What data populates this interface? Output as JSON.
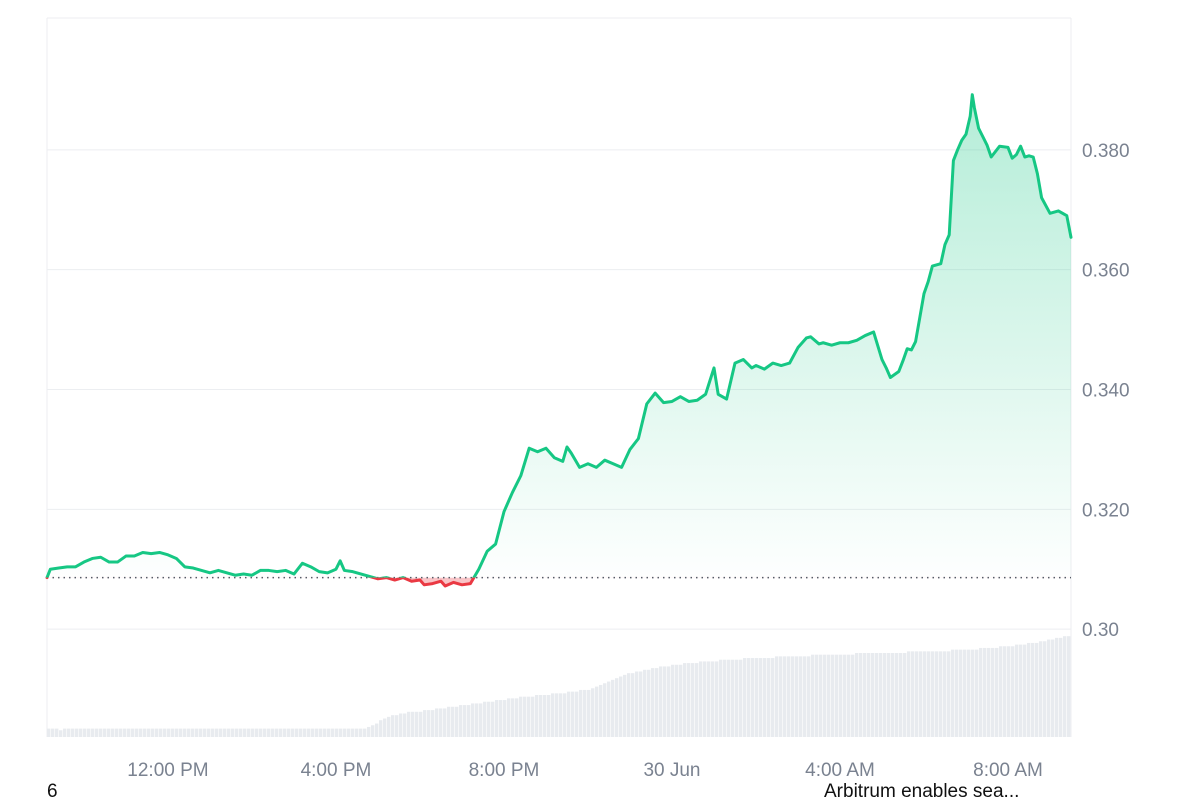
{
  "chart_data": {
    "type": "area",
    "title": "",
    "xlabel": "",
    "ylabel": "",
    "ylim": [
      0.282,
      0.402
    ],
    "baseline": 0.3086,
    "grid": true,
    "y_ticks": [
      {
        "value": 0.38,
        "label": "0.380"
      },
      {
        "value": 0.36,
        "label": "0.360"
      },
      {
        "value": 0.34,
        "label": "0.340"
      },
      {
        "value": 0.32,
        "label": "0.320"
      },
      {
        "value": 0.3,
        "label": "0.30"
      }
    ],
    "x_ticks": [
      {
        "t": 2.0,
        "label": "12:00 PM"
      },
      {
        "t": 6.0,
        "label": "4:00 PM"
      },
      {
        "t": 10.0,
        "label": "8:00 PM"
      },
      {
        "t": 14.0,
        "label": "30 Jun"
      },
      {
        "t": 18.0,
        "label": "4:00 AM"
      },
      {
        "t": 22.0,
        "label": "8:00 AM"
      }
    ],
    "xlim": [
      -0.88,
      23.5
    ],
    "colors": {
      "up": "#16c784",
      "down": "#ea3943",
      "volume": "#e8ebef"
    },
    "series": [
      {
        "points": [
          [
            -0.88,
            0.3086
          ],
          [
            -0.8,
            0.31
          ],
          [
            -0.6,
            0.3102
          ],
          [
            -0.4,
            0.3104
          ],
          [
            -0.2,
            0.3104
          ],
          [
            0.0,
            0.3112
          ],
          [
            0.2,
            0.3118
          ],
          [
            0.4,
            0.312
          ],
          [
            0.6,
            0.3112
          ],
          [
            0.8,
            0.3112
          ],
          [
            1.0,
            0.3122
          ],
          [
            1.2,
            0.3122
          ],
          [
            1.4,
            0.3128
          ],
          [
            1.6,
            0.3126
          ],
          [
            1.8,
            0.3128
          ],
          [
            2.0,
            0.3124
          ],
          [
            2.2,
            0.3118
          ],
          [
            2.4,
            0.3104
          ],
          [
            2.6,
            0.3102
          ],
          [
            2.8,
            0.3098
          ],
          [
            3.0,
            0.3094
          ],
          [
            3.2,
            0.3098
          ],
          [
            3.4,
            0.3094
          ],
          [
            3.6,
            0.309
          ],
          [
            3.8,
            0.3092
          ],
          [
            4.0,
            0.309
          ],
          [
            4.2,
            0.3098
          ],
          [
            4.4,
            0.3098
          ],
          [
            4.6,
            0.3096
          ],
          [
            4.8,
            0.3098
          ],
          [
            5.0,
            0.3092
          ],
          [
            5.2,
            0.311
          ],
          [
            5.4,
            0.3104
          ],
          [
            5.6,
            0.3096
          ],
          [
            5.8,
            0.3094
          ],
          [
            6.0,
            0.31
          ],
          [
            6.1,
            0.3114
          ],
          [
            6.2,
            0.3098
          ],
          [
            6.4,
            0.3096
          ],
          [
            6.6,
            0.3092
          ],
          [
            6.8,
            0.3088
          ],
          [
            7.0,
            0.3084
          ],
          [
            7.2,
            0.3086
          ],
          [
            7.4,
            0.3082
          ],
          [
            7.6,
            0.3086
          ],
          [
            7.8,
            0.308
          ],
          [
            8.0,
            0.3082
          ],
          [
            8.1,
            0.3074
          ],
          [
            8.3,
            0.3076
          ],
          [
            8.5,
            0.308
          ],
          [
            8.6,
            0.3072
          ],
          [
            8.8,
            0.3078
          ],
          [
            9.0,
            0.3074
          ],
          [
            9.2,
            0.3076
          ],
          [
            9.4,
            0.31
          ],
          [
            9.6,
            0.313
          ],
          [
            9.8,
            0.3142
          ],
          [
            10.0,
            0.3196
          ],
          [
            10.2,
            0.3228
          ],
          [
            10.4,
            0.3256
          ],
          [
            10.6,
            0.3302
          ],
          [
            10.8,
            0.3296
          ],
          [
            11.0,
            0.3302
          ],
          [
            11.2,
            0.3286
          ],
          [
            11.4,
            0.328
          ],
          [
            11.5,
            0.3304
          ],
          [
            11.6,
            0.3294
          ],
          [
            11.8,
            0.327
          ],
          [
            12.0,
            0.3276
          ],
          [
            12.2,
            0.327
          ],
          [
            12.4,
            0.3282
          ],
          [
            12.6,
            0.3276
          ],
          [
            12.8,
            0.327
          ],
          [
            13.0,
            0.33
          ],
          [
            13.2,
            0.3318
          ],
          [
            13.4,
            0.3376
          ],
          [
            13.6,
            0.3394
          ],
          [
            13.8,
            0.3378
          ],
          [
            14.0,
            0.338
          ],
          [
            14.2,
            0.3388
          ],
          [
            14.4,
            0.338
          ],
          [
            14.6,
            0.3382
          ],
          [
            14.8,
            0.3392
          ],
          [
            15.0,
            0.3436
          ],
          [
            15.1,
            0.3392
          ],
          [
            15.3,
            0.3384
          ],
          [
            15.5,
            0.3444
          ],
          [
            15.7,
            0.345
          ],
          [
            15.9,
            0.3436
          ],
          [
            16.0,
            0.344
          ],
          [
            16.2,
            0.3434
          ],
          [
            16.4,
            0.3444
          ],
          [
            16.6,
            0.344
          ],
          [
            16.8,
            0.3444
          ],
          [
            17.0,
            0.347
          ],
          [
            17.2,
            0.3486
          ],
          [
            17.3,
            0.3488
          ],
          [
            17.5,
            0.3476
          ],
          [
            17.6,
            0.3478
          ],
          [
            17.8,
            0.3474
          ],
          [
            18.0,
            0.3478
          ],
          [
            18.2,
            0.3478
          ],
          [
            18.4,
            0.3482
          ],
          [
            18.6,
            0.349
          ],
          [
            18.8,
            0.3496
          ],
          [
            19.0,
            0.345
          ],
          [
            19.1,
            0.3436
          ],
          [
            19.2,
            0.342
          ],
          [
            19.4,
            0.343
          ],
          [
            19.5,
            0.3448
          ],
          [
            19.6,
            0.3468
          ],
          [
            19.7,
            0.3466
          ],
          [
            19.8,
            0.348
          ],
          [
            19.9,
            0.352
          ],
          [
            20.0,
            0.356
          ],
          [
            20.1,
            0.358
          ],
          [
            20.2,
            0.3606
          ],
          [
            20.4,
            0.361
          ],
          [
            20.5,
            0.3642
          ],
          [
            20.6,
            0.3658
          ],
          [
            20.7,
            0.3782
          ],
          [
            20.8,
            0.38
          ],
          [
            20.9,
            0.3816
          ],
          [
            21.0,
            0.3826
          ],
          [
            21.1,
            0.3856
          ],
          [
            21.15,
            0.3892
          ],
          [
            21.2,
            0.387
          ],
          [
            21.3,
            0.3836
          ],
          [
            21.4,
            0.3822
          ],
          [
            21.5,
            0.3808
          ],
          [
            21.6,
            0.3788
          ],
          [
            21.8,
            0.3806
          ],
          [
            22.0,
            0.3804
          ],
          [
            22.1,
            0.3786
          ],
          [
            22.2,
            0.3792
          ],
          [
            22.3,
            0.3806
          ],
          [
            22.4,
            0.3788
          ],
          [
            22.5,
            0.379
          ],
          [
            22.6,
            0.3788
          ],
          [
            22.7,
            0.376
          ],
          [
            22.8,
            0.372
          ],
          [
            23.0,
            0.3694
          ],
          [
            23.2,
            0.3698
          ],
          [
            23.4,
            0.369
          ],
          [
            23.5,
            0.3654
          ]
        ]
      }
    ],
    "volume": [
      0.05,
      0.05,
      0.05,
      0.04,
      0.05,
      0.05,
      0.05,
      0.05,
      0.05,
      0.05,
      0.05,
      0.05,
      0.05,
      0.05,
      0.05,
      0.05,
      0.05,
      0.05,
      0.05,
      0.05,
      0.05,
      0.05,
      0.05,
      0.05,
      0.05,
      0.05,
      0.05,
      0.05,
      0.05,
      0.05,
      0.05,
      0.05,
      0.05,
      0.05,
      0.05,
      0.05,
      0.05,
      0.05,
      0.05,
      0.05,
      0.05,
      0.05,
      0.05,
      0.05,
      0.05,
      0.05,
      0.05,
      0.05,
      0.05,
      0.05,
      0.05,
      0.05,
      0.05,
      0.05,
      0.05,
      0.05,
      0.05,
      0.05,
      0.05,
      0.05,
      0.05,
      0.05,
      0.05,
      0.05,
      0.05,
      0.05,
      0.05,
      0.05,
      0.05,
      0.05,
      0.05,
      0.05,
      0.05,
      0.05,
      0.05,
      0.05,
      0.05,
      0.05,
      0.05,
      0.05,
      0.06,
      0.07,
      0.08,
      0.1,
      0.11,
      0.12,
      0.13,
      0.13,
      0.14,
      0.14,
      0.15,
      0.15,
      0.15,
      0.15,
      0.16,
      0.16,
      0.16,
      0.17,
      0.17,
      0.17,
      0.18,
      0.18,
      0.18,
      0.19,
      0.19,
      0.19,
      0.2,
      0.2,
      0.2,
      0.21,
      0.21,
      0.21,
      0.22,
      0.22,
      0.22,
      0.23,
      0.23,
      0.23,
      0.24,
      0.24,
      0.24,
      0.24,
      0.25,
      0.25,
      0.25,
      0.25,
      0.26,
      0.26,
      0.26,
      0.26,
      0.27,
      0.27,
      0.27,
      0.28,
      0.28,
      0.28,
      0.29,
      0.3,
      0.31,
      0.32,
      0.33,
      0.34,
      0.35,
      0.36,
      0.37,
      0.38,
      0.38,
      0.39,
      0.39,
      0.4,
      0.4,
      0.41,
      0.41,
      0.42,
      0.42,
      0.42,
      0.43,
      0.43,
      0.43,
      0.44,
      0.44,
      0.44,
      0.44,
      0.45,
      0.45,
      0.45,
      0.45,
      0.45,
      0.46,
      0.46,
      0.46,
      0.46,
      0.46,
      0.46,
      0.47,
      0.47,
      0.47,
      0.47,
      0.47,
      0.47,
      0.47,
      0.47,
      0.48,
      0.48,
      0.48,
      0.48,
      0.48,
      0.48,
      0.48,
      0.48,
      0.48,
      0.49,
      0.49,
      0.49,
      0.49,
      0.49,
      0.49,
      0.49,
      0.49,
      0.49,
      0.49,
      0.49,
      0.5,
      0.5,
      0.5,
      0.5,
      0.5,
      0.5,
      0.5,
      0.5,
      0.5,
      0.5,
      0.5,
      0.5,
      0.5,
      0.51,
      0.51,
      0.51,
      0.51,
      0.51,
      0.51,
      0.51,
      0.51,
      0.51,
      0.51,
      0.51,
      0.52,
      0.52,
      0.52,
      0.52,
      0.52,
      0.52,
      0.52,
      0.53,
      0.53,
      0.53,
      0.53,
      0.53,
      0.54,
      0.54,
      0.54,
      0.54,
      0.55,
      0.55,
      0.55,
      0.56,
      0.56,
      0.56,
      0.57,
      0.57,
      0.58,
      0.58,
      0.59,
      0.59,
      0.6,
      0.6
    ]
  },
  "footer": {
    "left_text": "6",
    "right_text": "Arbitrum enables sea..."
  }
}
